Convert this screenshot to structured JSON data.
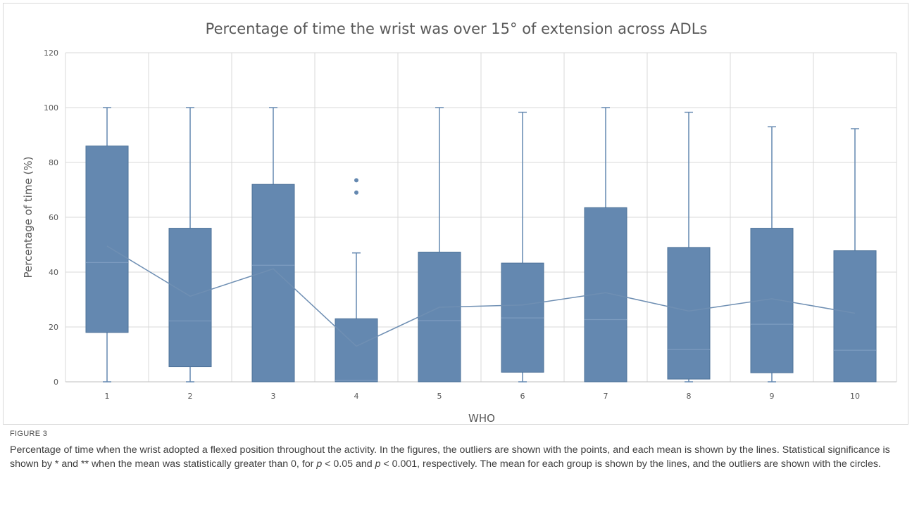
{
  "chart_data": {
    "type": "box",
    "title": "Percentage of time the wrist was over 15° of extension across ADLs",
    "xlabel": "WHO",
    "ylabel": "Percentage of time (%)",
    "ylim": [
      0,
      120
    ],
    "yticks": [
      0,
      20,
      40,
      60,
      80,
      100,
      120
    ],
    "grid": true,
    "box_color": "#6488b0",
    "categories": [
      "1",
      "2",
      "3",
      "4",
      "5",
      "6",
      "7",
      "8",
      "9",
      "10"
    ],
    "boxes": [
      {
        "min": 0,
        "q1": 18,
        "median": 43.5,
        "q3": 86,
        "max": 100,
        "mean": 49.5,
        "outliers": []
      },
      {
        "min": 0,
        "q1": 5.5,
        "median": 22.2,
        "q3": 56,
        "max": 100,
        "mean": 31.2,
        "outliers": []
      },
      {
        "min": 0,
        "q1": 0,
        "median": 42.5,
        "q3": 72,
        "max": 100,
        "mean": 41.2,
        "outliers": []
      },
      {
        "min": 0,
        "q1": 0,
        "median": 0.5,
        "q3": 23,
        "max": 47,
        "mean": 13,
        "outliers": [
          69,
          73.5
        ]
      },
      {
        "min": 0,
        "q1": 0,
        "median": 22.3,
        "q3": 47.3,
        "max": 100,
        "mean": 27.2,
        "outliers": []
      },
      {
        "min": 0,
        "q1": 3.5,
        "median": 23.3,
        "q3": 43.3,
        "max": 98.3,
        "mean": 28,
        "outliers": []
      },
      {
        "min": 0,
        "q1": 0,
        "median": 22.7,
        "q3": 63.5,
        "max": 100,
        "mean": 32.5,
        "outliers": []
      },
      {
        "min": 0,
        "q1": 1,
        "median": 11.8,
        "q3": 49,
        "max": 98.3,
        "mean": 25.8,
        "outliers": []
      },
      {
        "min": 0,
        "q1": 3.3,
        "median": 21,
        "q3": 56,
        "max": 93,
        "mean": 30.3,
        "outliers": []
      },
      {
        "min": 0,
        "q1": 0,
        "median": 11.5,
        "q3": 47.8,
        "max": 92.3,
        "mean": 25,
        "outliers": []
      }
    ]
  },
  "caption": {
    "figure_label": "FIGURE 3",
    "text_part1": "Percentage of time when the wrist adopted a flexed position throughout the activity. In the figures, the outliers are shown with the points, and each mean is shown by the lines. Statistical significance is shown by * and ** when the mean was statistically greater than 0, for ",
    "p1": "p",
    "text_part2": " < 0.05 and ",
    "p2": "p",
    "text_part3": " < 0.001, respectively. The mean for each group is shown by the lines, and the outliers are shown with the circles."
  }
}
